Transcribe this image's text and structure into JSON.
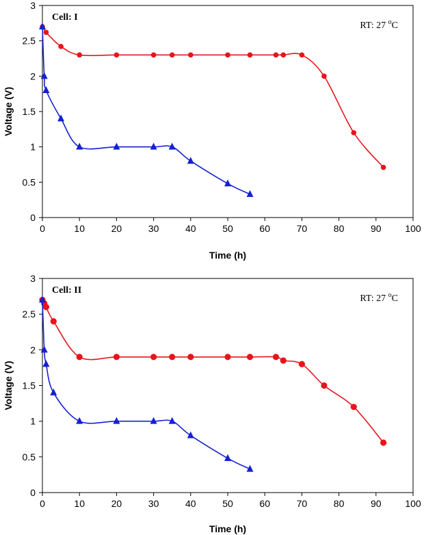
{
  "colors": {
    "series_red": "#e8141b",
    "series_blue": "#1420d2",
    "axis": "#000000"
  },
  "chart_data": [
    {
      "type": "line",
      "title": "Cell: I",
      "annotation": {
        "prefix": "RT: 27 ",
        "sup": "o",
        "suffix": "C"
      },
      "xlabel": "Time (h)",
      "ylabel": "Voltage (V)",
      "xlim": [
        0,
        100
      ],
      "ylim": [
        0,
        3
      ],
      "xticks": [
        0,
        10,
        20,
        30,
        40,
        50,
        60,
        70,
        80,
        90,
        100
      ],
      "yticks": [
        0,
        0.5,
        1,
        1.5,
        2,
        2.5,
        3
      ],
      "ytick_labels": [
        "0",
        "0.5",
        "1",
        "1.5",
        "2",
        "2.5",
        "3"
      ],
      "series": [
        {
          "name": "red-circles",
          "marker": "circle",
          "x": [
            0,
            1,
            5,
            10,
            20,
            30,
            35,
            40,
            50,
            56,
            63,
            65,
            70,
            76,
            84,
            92
          ],
          "y": [
            2.7,
            2.62,
            2.42,
            2.3,
            2.3,
            2.3,
            2.3,
            2.3,
            2.3,
            2.3,
            2.3,
            2.3,
            2.3,
            2.0,
            1.2,
            0.71
          ]
        },
        {
          "name": "blue-triangles",
          "marker": "triangle",
          "x": [
            0,
            0.5,
            1,
            5,
            10,
            20,
            30,
            35,
            40,
            50,
            56
          ],
          "y": [
            2.7,
            2.0,
            1.8,
            1.4,
            1.0,
            1.0,
            1.0,
            1.0,
            0.8,
            0.48,
            0.33
          ]
        }
      ]
    },
    {
      "type": "line",
      "title": "Cell: II",
      "annotation": {
        "prefix": "RT: 27 ",
        "sup": "o",
        "suffix": "C"
      },
      "xlabel": "Time (h)",
      "ylabel": "Voltage (V)",
      "xlim": [
        0,
        100
      ],
      "ylim": [
        0,
        3
      ],
      "xticks": [
        0,
        10,
        20,
        30,
        40,
        50,
        60,
        70,
        80,
        90,
        100
      ],
      "yticks": [
        0,
        0.5,
        1,
        1.5,
        2,
        2.5,
        3
      ],
      "ytick_labels": [
        "0",
        "0.5",
        "1",
        "1.5",
        "2",
        "2.5",
        "3"
      ],
      "series": [
        {
          "name": "red-circles",
          "marker": "circle",
          "x": [
            0,
            0.5,
            1,
            3,
            10,
            20,
            30,
            35,
            40,
            50,
            56,
            63,
            65,
            70,
            76,
            84,
            92
          ],
          "y": [
            2.7,
            2.65,
            2.6,
            2.4,
            1.9,
            1.9,
            1.9,
            1.9,
            1.9,
            1.9,
            1.9,
            1.9,
            1.85,
            1.8,
            1.5,
            1.2,
            0.7
          ]
        },
        {
          "name": "blue-triangles",
          "marker": "triangle",
          "x": [
            0,
            0.5,
            1,
            3,
            10,
            20,
            30,
            35,
            40,
            50,
            56
          ],
          "y": [
            2.7,
            2.0,
            1.8,
            1.4,
            1.0,
            1.0,
            1.0,
            1.0,
            0.8,
            0.48,
            0.33
          ]
        }
      ]
    }
  ]
}
